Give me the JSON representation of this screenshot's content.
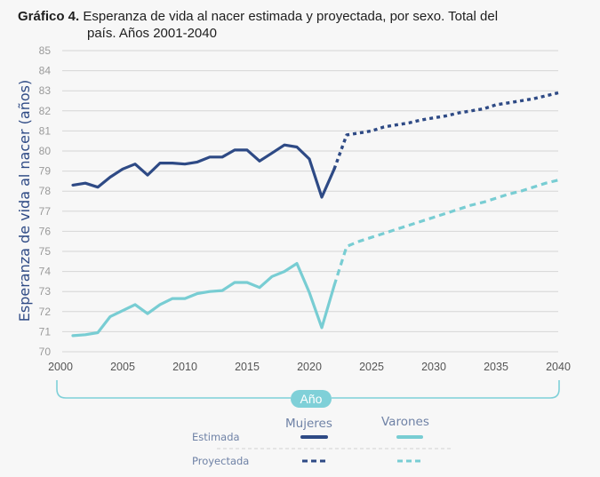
{
  "title": {
    "bold": "Gráfico 4.",
    "text_line1": "Esperanza de vida al nacer estimada y proyectada, por sexo. Total del",
    "text_line2": "país. Años 2001-2040"
  },
  "legend": {
    "col_mujeres": "Mujeres",
    "col_varones": "Varones",
    "row_estimada": "Estimada",
    "row_proyectada": "Proyectada"
  },
  "colors": {
    "mujeres": "#2e4a85",
    "varones": "#78cdd3",
    "grid": "#d6d6d6"
  },
  "chart_data": {
    "type": "line",
    "title": "Esperanza de vida al nacer estimada y proyectada, por sexo. Total del país. Años 2001-2040",
    "xlabel": "Año",
    "ylabel": "Esperanza de vida al nacer (años)",
    "xlim": [
      2000,
      2040
    ],
    "ylim": [
      70,
      85
    ],
    "xticks": [
      2000,
      2005,
      2010,
      2015,
      2020,
      2025,
      2030,
      2035,
      2040
    ],
    "yticks": [
      70,
      71,
      72,
      73,
      74,
      75,
      76,
      77,
      78,
      79,
      80,
      81,
      82,
      83,
      84,
      85
    ],
    "grid": true,
    "legend_position": "bottom",
    "series": [
      {
        "name": "Mujeres - Estimada",
        "style": "solid",
        "x": [
          2001,
          2002,
          2003,
          2004,
          2005,
          2006,
          2007,
          2008,
          2009,
          2010,
          2011,
          2012,
          2013,
          2014,
          2015,
          2016,
          2017,
          2018,
          2019,
          2020,
          2021,
          2022
        ],
        "values": [
          78.3,
          78.4,
          78.2,
          78.7,
          79.1,
          79.35,
          78.8,
          79.4,
          79.4,
          79.35,
          79.45,
          79.7,
          79.7,
          80.05,
          80.05,
          79.5,
          79.9,
          80.3,
          80.2,
          79.6,
          77.7,
          79.1
        ]
      },
      {
        "name": "Mujeres - Proyectada",
        "style": "dashed",
        "x": [
          2022,
          2023,
          2024,
          2025,
          2026,
          2027,
          2028,
          2029,
          2030,
          2031,
          2032,
          2033,
          2034,
          2035,
          2036,
          2037,
          2038,
          2039,
          2040
        ],
        "values": [
          79.1,
          80.8,
          80.9,
          81.0,
          81.2,
          81.3,
          81.4,
          81.55,
          81.65,
          81.75,
          81.9,
          82.0,
          82.1,
          82.3,
          82.4,
          82.5,
          82.6,
          82.75,
          82.9
        ]
      },
      {
        "name": "Varones - Estimada",
        "style": "solid",
        "x": [
          2001,
          2002,
          2003,
          2004,
          2005,
          2006,
          2007,
          2008,
          2009,
          2010,
          2011,
          2012,
          2013,
          2014,
          2015,
          2016,
          2017,
          2018,
          2019,
          2020,
          2021,
          2022
        ],
        "values": [
          70.8,
          70.85,
          70.95,
          71.75,
          72.05,
          72.35,
          71.9,
          72.35,
          72.65,
          72.65,
          72.9,
          73.0,
          73.05,
          73.45,
          73.45,
          73.2,
          73.75,
          74.0,
          74.4,
          72.95,
          71.2,
          73.3
        ]
      },
      {
        "name": "Varones - Proyectada",
        "style": "dashed",
        "x": [
          2022,
          2023,
          2024,
          2025,
          2026,
          2027,
          2028,
          2029,
          2030,
          2031,
          2032,
          2033,
          2034,
          2035,
          2036,
          2037,
          2038,
          2039,
          2040
        ],
        "values": [
          73.3,
          75.25,
          75.5,
          75.7,
          75.9,
          76.1,
          76.3,
          76.5,
          76.7,
          76.9,
          77.1,
          77.3,
          77.45,
          77.65,
          77.85,
          78.0,
          78.2,
          78.4,
          78.55
        ]
      }
    ]
  }
}
